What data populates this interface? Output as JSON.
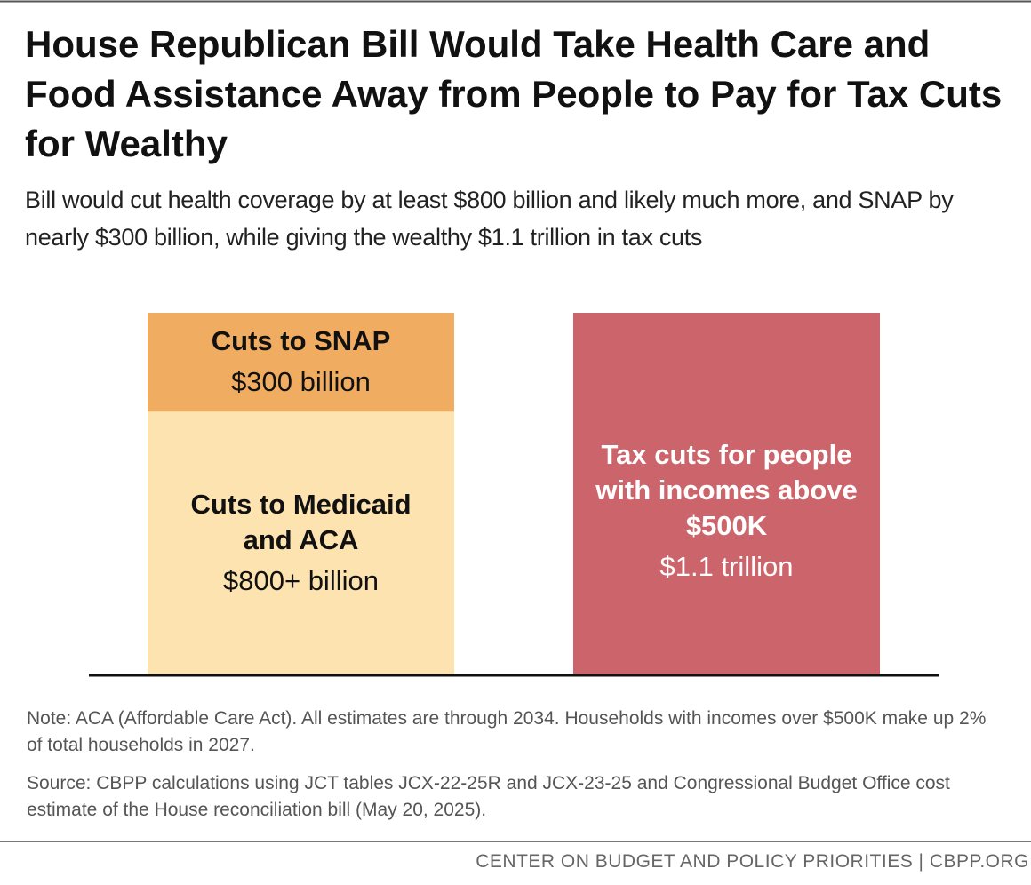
{
  "chart_data": {
    "type": "bar",
    "stacked": true,
    "title": "House Republican Bill Would Take Health Care and Food Assistance Away from People to Pay for Tax Cuts for Wealthy",
    "subtitle": "Bill would cut health coverage by at least $800 billion and likely much more, and SNAP by nearly $300 billion, while giving the wealthy $1.1 trillion in tax cuts",
    "categories": [
      null,
      null
    ],
    "series": [
      {
        "name": "Cuts to Medicaid and ACA",
        "color": "#fde3b0",
        "values": [
          800,
          null
        ],
        "value_labels": [
          "$800+ billion",
          null
        ]
      },
      {
        "name": "Cuts to SNAP",
        "color": "#f0ad62",
        "values": [
          300,
          null
        ],
        "value_labels": [
          "$300 billion",
          null
        ]
      },
      {
        "name": "Tax cuts for people with incomes above $500K",
        "color": "#cc656b",
        "values": [
          null,
          1100
        ],
        "value_labels": [
          null,
          "$1.1 trillion"
        ]
      }
    ],
    "note": "Note: ACA (Affordable Care Act). All estimates are through 2034. Households with incomes over $500K make up 2% of total households in 2027.",
    "source": "Source: CBPP calculations using JCT tables JCX-22-25R and JCX-23-25 and Congressional Budget Office cost estimate of the House reconciliation bill (May 20, 2025).",
    "credit": "CENTER ON BUDGET AND POLICY PRIORITIES | CBPP.ORG"
  }
}
